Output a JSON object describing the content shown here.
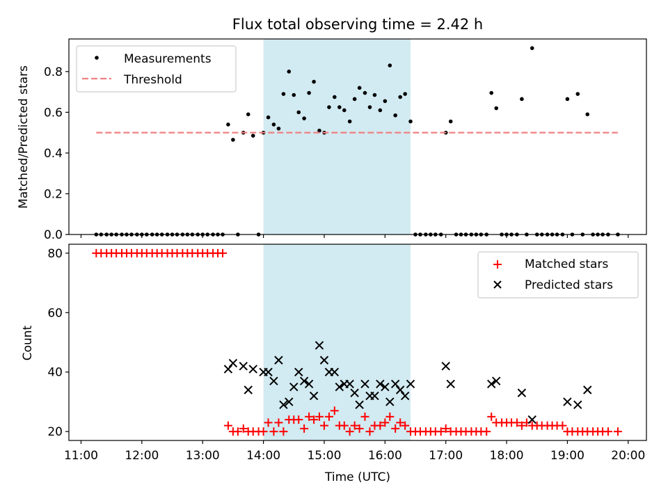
{
  "chart_data": [
    {
      "type": "scatter",
      "title": "Flux total observing time = 2.42 h",
      "ylabel": "Matched/Predicted stars",
      "xlim": [
        10.8,
        20.3
      ],
      "ylim": [
        0,
        0.96
      ],
      "yticks": [
        0.0,
        0.2,
        0.4,
        0.6,
        0.8
      ],
      "ytick_labels": [
        "0.0",
        "0.2",
        "0.4",
        "0.6",
        "0.8"
      ],
      "shaded_span": [
        14.0,
        16.42
      ],
      "shade_color": "#add8e6",
      "legend": {
        "position": "upper left",
        "entries": [
          "Measurements",
          "Threshold"
        ]
      },
      "series": [
        {
          "name": "Measurements",
          "style": "dot",
          "color": "#000000",
          "points": [
            [
              11.25,
              0
            ],
            [
              11.33,
              0
            ],
            [
              11.42,
              0
            ],
            [
              11.5,
              0
            ],
            [
              11.58,
              0
            ],
            [
              11.67,
              0
            ],
            [
              11.75,
              0
            ],
            [
              11.83,
              0
            ],
            [
              11.92,
              0
            ],
            [
              12.0,
              0
            ],
            [
              12.08,
              0
            ],
            [
              12.17,
              0
            ],
            [
              12.25,
              0
            ],
            [
              12.33,
              0
            ],
            [
              12.42,
              0
            ],
            [
              12.5,
              0
            ],
            [
              12.58,
              0
            ],
            [
              12.67,
              0
            ],
            [
              12.75,
              0
            ],
            [
              12.83,
              0
            ],
            [
              12.92,
              0
            ],
            [
              13.0,
              0
            ],
            [
              13.08,
              0
            ],
            [
              13.17,
              0
            ],
            [
              13.25,
              0
            ],
            [
              13.33,
              0
            ],
            [
              13.42,
              0.54
            ],
            [
              13.5,
              0.465
            ],
            [
              13.58,
              0
            ],
            [
              13.67,
              0.5
            ],
            [
              13.75,
              0.59
            ],
            [
              13.83,
              0.485
            ],
            [
              13.92,
              0
            ],
            [
              14.0,
              0.5
            ],
            [
              14.08,
              0.575
            ],
            [
              14.17,
              0.54
            ],
            [
              14.25,
              0.52
            ],
            [
              14.33,
              0.69
            ],
            [
              14.42,
              0.8
            ],
            [
              14.5,
              0.685
            ],
            [
              14.58,
              0.6
            ],
            [
              14.67,
              0.57
            ],
            [
              14.75,
              0.695
            ],
            [
              14.83,
              0.75
            ],
            [
              14.92,
              0.51
            ],
            [
              15.0,
              0.5
            ],
            [
              15.08,
              0.625
            ],
            [
              15.17,
              0.675
            ],
            [
              15.25,
              0.625
            ],
            [
              15.33,
              0.61
            ],
            [
              15.42,
              0.555
            ],
            [
              15.5,
              0.665
            ],
            [
              15.58,
              0.72
            ],
            [
              15.67,
              0.695
            ],
            [
              15.75,
              0.625
            ],
            [
              15.83,
              0.685
            ],
            [
              15.92,
              0.61
            ],
            [
              16.0,
              0.655
            ],
            [
              16.08,
              0.83
            ],
            [
              16.17,
              0.585
            ],
            [
              16.25,
              0.675
            ],
            [
              16.33,
              0.69
            ],
            [
              16.42,
              0.555
            ],
            [
              16.5,
              0
            ],
            [
              16.58,
              0
            ],
            [
              16.67,
              0
            ],
            [
              16.75,
              0
            ],
            [
              16.83,
              0
            ],
            [
              16.92,
              0
            ],
            [
              17.0,
              0.5
            ],
            [
              17.08,
              0.555
            ],
            [
              17.17,
              0
            ],
            [
              17.25,
              0
            ],
            [
              17.33,
              0
            ],
            [
              17.42,
              0
            ],
            [
              17.5,
              0
            ],
            [
              17.58,
              0
            ],
            [
              17.67,
              0
            ],
            [
              17.75,
              0.695
            ],
            [
              17.83,
              0.62
            ],
            [
              17.92,
              0
            ],
            [
              18.0,
              0
            ],
            [
              18.08,
              0
            ],
            [
              18.17,
              0
            ],
            [
              18.25,
              0.665
            ],
            [
              18.33,
              0
            ],
            [
              18.42,
              0.915
            ],
            [
              18.5,
              0
            ],
            [
              18.58,
              0
            ],
            [
              18.67,
              0
            ],
            [
              18.75,
              0
            ],
            [
              18.83,
              0
            ],
            [
              18.92,
              0
            ],
            [
              19.0,
              0.665
            ],
            [
              19.08,
              0
            ],
            [
              19.17,
              0.69
            ],
            [
              19.25,
              0
            ],
            [
              19.33,
              0.59
            ],
            [
              19.42,
              0
            ],
            [
              19.5,
              0
            ],
            [
              19.58,
              0
            ],
            [
              19.67,
              0
            ],
            [
              19.83,
              0
            ]
          ]
        },
        {
          "name": "Threshold",
          "style": "dashed-line",
          "color": "#f08080",
          "x": [
            11.25,
            19.83
          ],
          "y": [
            0.5,
            0.5
          ]
        }
      ]
    },
    {
      "type": "scatter",
      "xlabel": "Time (UTC)",
      "ylabel": "Count",
      "xlim": [
        10.8,
        20.3
      ],
      "ylim": [
        17,
        83
      ],
      "yticks": [
        20,
        40,
        60,
        80
      ],
      "ytick_labels": [
        "20",
        "40",
        "60",
        "80"
      ],
      "xticks": [
        11,
        12,
        13,
        14,
        15,
        16,
        17,
        18,
        19,
        20
      ],
      "xtick_labels": [
        "11:00",
        "12:00",
        "13:00",
        "14:00",
        "15:00",
        "16:00",
        "17:00",
        "18:00",
        "19:00",
        "20:00"
      ],
      "shaded_span": [
        14.0,
        16.42
      ],
      "shade_color": "#add8e6",
      "legend": {
        "position": "upper right",
        "entries": [
          "Matched stars",
          "Predicted stars"
        ]
      },
      "series": [
        {
          "name": "Matched stars",
          "style": "plus",
          "color": "#ff0000",
          "points": [
            [
              11.25,
              80
            ],
            [
              11.33,
              80
            ],
            [
              11.42,
              80
            ],
            [
              11.5,
              80
            ],
            [
              11.58,
              80
            ],
            [
              11.67,
              80
            ],
            [
              11.75,
              80
            ],
            [
              11.83,
              80
            ],
            [
              11.92,
              80
            ],
            [
              12.0,
              80
            ],
            [
              12.08,
              80
            ],
            [
              12.17,
              80
            ],
            [
              12.25,
              80
            ],
            [
              12.33,
              80
            ],
            [
              12.42,
              80
            ],
            [
              12.5,
              80
            ],
            [
              12.58,
              80
            ],
            [
              12.67,
              80
            ],
            [
              12.75,
              80
            ],
            [
              12.83,
              80
            ],
            [
              12.92,
              80
            ],
            [
              13.0,
              80
            ],
            [
              13.08,
              80
            ],
            [
              13.17,
              80
            ],
            [
              13.25,
              80
            ],
            [
              13.33,
              80
            ],
            [
              13.42,
              22
            ],
            [
              13.5,
              20
            ],
            [
              13.58,
              20
            ],
            [
              13.67,
              21
            ],
            [
              13.75,
              20
            ],
            [
              13.83,
              20
            ],
            [
              13.92,
              20
            ],
            [
              14.0,
              20
            ],
            [
              14.08,
              23
            ],
            [
              14.17,
              20
            ],
            [
              14.25,
              23
            ],
            [
              14.33,
              20
            ],
            [
              14.42,
              24
            ],
            [
              14.5,
              24
            ],
            [
              14.58,
              24
            ],
            [
              14.67,
              21
            ],
            [
              14.75,
              25
            ],
            [
              14.83,
              24
            ],
            [
              14.92,
              25
            ],
            [
              15.0,
              22
            ],
            [
              15.08,
              25
            ],
            [
              15.17,
              27
            ],
            [
              15.25,
              22
            ],
            [
              15.33,
              22
            ],
            [
              15.42,
              20
            ],
            [
              15.5,
              22
            ],
            [
              15.58,
              21
            ],
            [
              15.67,
              25
            ],
            [
              15.75,
              20
            ],
            [
              15.83,
              22
            ],
            [
              15.92,
              22
            ],
            [
              16.0,
              23
            ],
            [
              16.08,
              25
            ],
            [
              16.17,
              21
            ],
            [
              16.25,
              23
            ],
            [
              16.33,
              22
            ],
            [
              16.42,
              20
            ],
            [
              16.5,
              20
            ],
            [
              16.58,
              20
            ],
            [
              16.67,
              20
            ],
            [
              16.75,
              20
            ],
            [
              16.83,
              20
            ],
            [
              16.92,
              20
            ],
            [
              17.0,
              21
            ],
            [
              17.08,
              20
            ],
            [
              17.17,
              20
            ],
            [
              17.25,
              20
            ],
            [
              17.33,
              20
            ],
            [
              17.42,
              20
            ],
            [
              17.5,
              20
            ],
            [
              17.58,
              20
            ],
            [
              17.67,
              20
            ],
            [
              17.75,
              25
            ],
            [
              17.83,
              23
            ],
            [
              17.92,
              23
            ],
            [
              18.0,
              23
            ],
            [
              18.08,
              23
            ],
            [
              18.17,
              23
            ],
            [
              18.25,
              22
            ],
            [
              18.33,
              23
            ],
            [
              18.42,
              22
            ],
            [
              18.5,
              22
            ],
            [
              18.58,
              22
            ],
            [
              18.67,
              22
            ],
            [
              18.75,
              22
            ],
            [
              18.83,
              22
            ],
            [
              18.92,
              22
            ],
            [
              19.0,
              20
            ],
            [
              19.08,
              20
            ],
            [
              19.17,
              20
            ],
            [
              19.25,
              20
            ],
            [
              19.33,
              20
            ],
            [
              19.42,
              20
            ],
            [
              19.5,
              20
            ],
            [
              19.58,
              20
            ],
            [
              19.67,
              20
            ],
            [
              19.83,
              20
            ]
          ]
        },
        {
          "name": "Predicted stars",
          "style": "x",
          "color": "#000000",
          "points": [
            [
              13.42,
              41
            ],
            [
              13.5,
              43
            ],
            [
              13.67,
              42
            ],
            [
              13.75,
              34
            ],
            [
              13.83,
              41
            ],
            [
              14.0,
              40
            ],
            [
              14.08,
              40
            ],
            [
              14.17,
              37
            ],
            [
              14.25,
              44
            ],
            [
              14.33,
              29
            ],
            [
              14.42,
              30
            ],
            [
              14.5,
              35
            ],
            [
              14.58,
              40
            ],
            [
              14.67,
              37
            ],
            [
              14.75,
              36
            ],
            [
              14.83,
              32
            ],
            [
              14.92,
              49
            ],
            [
              15.0,
              44
            ],
            [
              15.08,
              40
            ],
            [
              15.17,
              40
            ],
            [
              15.25,
              35
            ],
            [
              15.33,
              36
            ],
            [
              15.42,
              36
            ],
            [
              15.5,
              33
            ],
            [
              15.58,
              29
            ],
            [
              15.67,
              36
            ],
            [
              15.75,
              32
            ],
            [
              15.83,
              32
            ],
            [
              15.92,
              36
            ],
            [
              16.0,
              35
            ],
            [
              16.08,
              30
            ],
            [
              16.17,
              36
            ],
            [
              16.25,
              34
            ],
            [
              16.33,
              32
            ],
            [
              16.42,
              36
            ],
            [
              17.0,
              42
            ],
            [
              17.08,
              36
            ],
            [
              17.75,
              36
            ],
            [
              17.83,
              37
            ],
            [
              18.25,
              33
            ],
            [
              18.42,
              24
            ],
            [
              19.0,
              30
            ],
            [
              19.17,
              29
            ],
            [
              19.33,
              34
            ]
          ]
        }
      ]
    }
  ]
}
